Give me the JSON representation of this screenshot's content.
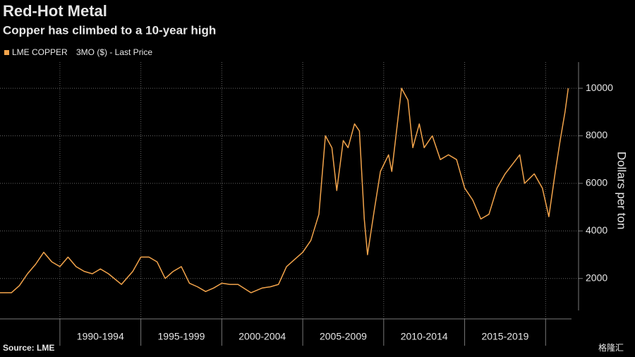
{
  "chart_data": {
    "type": "line",
    "title": "Red-Hot Metal",
    "subtitle": "Copper has climbed to a 10-year high",
    "legend_label": "3MO ($) - Last Price",
    "y_label": "Dollars per ton",
    "source": "Source: LME",
    "watermark": "格隆汇",
    "x": [
      1986.3,
      1987,
      1987.5,
      1988,
      1988.5,
      1989,
      1989.5,
      1990,
      1990.5,
      1991,
      1991.5,
      1992,
      1992.5,
      1993,
      1993.8,
      1994.5,
      1995,
      1995.5,
      1996,
      1996.5,
      1997,
      1997.5,
      1998,
      1998.5,
      1999,
      1999.5,
      2000,
      2000.5,
      2001,
      2001.8,
      2002.5,
      2003,
      2003.5,
      2004,
      2004.5,
      2005,
      2005.5,
      2006,
      2006.4,
      2006.8,
      2007.1,
      2007.5,
      2007.8,
      2008.2,
      2008.5,
      2008.8,
      2009,
      2009.4,
      2009.8,
      2010.3,
      2010.5,
      2011.1,
      2011.5,
      2011.8,
      2012.2,
      2012.5,
      2013,
      2013.5,
      2014,
      2014.5,
      2015,
      2015.5,
      2016,
      2016.5,
      2017,
      2017.5,
      2018.4,
      2018.7,
      2019.3,
      2019.8,
      2020.2,
      2020.6,
      2020.9,
      2021.2,
      2021.4
    ],
    "series": [
      {
        "name": "LME COPPER",
        "color": "#f3a44b",
        "values": [
          1400,
          1400,
          1700,
          2200,
          2600,
          3100,
          2700,
          2500,
          2900,
          2500,
          2300,
          2200,
          2400,
          2200,
          1750,
          2300,
          2900,
          2900,
          2700,
          2000,
          2300,
          2500,
          1800,
          1650,
          1450,
          1600,
          1800,
          1750,
          1750,
          1400,
          1600,
          1650,
          1750,
          2500,
          2800,
          3100,
          3600,
          4700,
          8000,
          7500,
          5700,
          7800,
          7500,
          8500,
          8200,
          4500,
          3000,
          4800,
          6500,
          7200,
          6500,
          10000,
          9500,
          7500,
          8500,
          7500,
          8000,
          7000,
          7200,
          7000,
          5800,
          5300,
          4500,
          4700,
          5800,
          6400,
          7200,
          6000,
          6400,
          5800,
          4600,
          6500,
          7800,
          9000,
          10000
        ]
      }
    ],
    "xlim": [
      1986.3,
      2021.6
    ],
    "xticks": [
      {
        "value": 1990,
        "label": "1990-1994"
      },
      {
        "value": 1995,
        "label": "1995-1999"
      },
      {
        "value": 2000,
        "label": "2000-2004"
      },
      {
        "value": 2005,
        "label": "2005-2009"
      },
      {
        "value": 2010,
        "label": "2010-2014"
      },
      {
        "value": 2015,
        "label": "2015-2019"
      },
      {
        "value": 2020,
        "label": null
      }
    ],
    "ylim": [
      300,
      11100
    ],
    "yticks": [
      2000,
      4000,
      6000,
      8000,
      10000
    ],
    "grid": true
  }
}
